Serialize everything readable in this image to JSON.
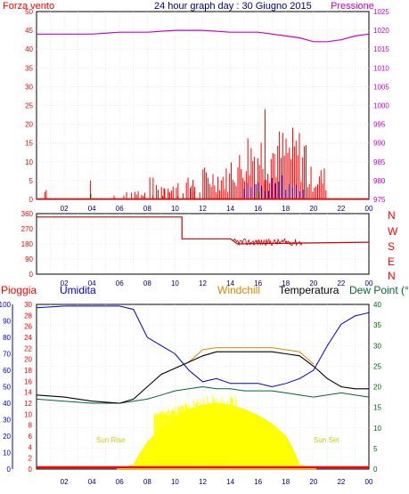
{
  "chart_data": [
    {
      "type": "bar+line",
      "title": "24 hour graph day : 30 Giugno 2015",
      "left_label": "Forza vento",
      "right_label": "Pressione",
      "x_ticks": [
        "02",
        "04",
        "06",
        "08",
        "10",
        "12",
        "14",
        "16",
        "18",
        "20",
        "22",
        "00"
      ],
      "y_left_ticks": [
        "0",
        "5",
        "10",
        "15",
        "20",
        "25",
        "30",
        "35",
        "40",
        "45",
        "50"
      ],
      "y_left_lim": [
        0,
        50
      ],
      "y_right_ticks": [
        "975",
        "980",
        "985",
        "990",
        "995",
        "1000",
        "1005",
        "1010",
        "1015",
        "1020",
        "1025"
      ],
      "y_right_lim": [
        975,
        1025
      ],
      "pressure_series": {
        "x": [
          0,
          2,
          4,
          6,
          8,
          10,
          12,
          14,
          16,
          18,
          19,
          20,
          21,
          22,
          23,
          24
        ],
        "values": [
          1019,
          1019,
          1019,
          1019.5,
          1019.5,
          1020,
          1020,
          1019.5,
          1019.5,
          1018.5,
          1018,
          1017,
          1017,
          1017.5,
          1018.5,
          1019
        ]
      },
      "wind_peak": 24,
      "colors": {
        "wind": "#ff0000",
        "pressure": "#cc00cc",
        "gust": "#006600",
        "avg": "#0000cc"
      }
    },
    {
      "type": "line",
      "left_label": "",
      "y_ticks": [
        "360",
        "270",
        "180",
        "90",
        "0"
      ],
      "y_lim": [
        0,
        360
      ],
      "direction_labels": [
        "N",
        "W",
        "S",
        "E",
        "N"
      ],
      "series": {
        "x": [
          0,
          10.5,
          10.5,
          14,
          14.5,
          24
        ],
        "values": [
          340,
          340,
          210,
          210,
          180,
          190
        ]
      },
      "colors": {
        "line": "#cc0000",
        "letters": "#ff0000"
      }
    },
    {
      "type": "line+area",
      "labels": {
        "rain": "Pioggia",
        "humidity": "Umidita",
        "windchill": "Windchill",
        "temperature": "Temperatura",
        "dewpoint": "Dew Point (°C"
      },
      "y_hum_ticks": [
        "0",
        "10",
        "20",
        "30",
        "40",
        "50",
        "60",
        "70",
        "80",
        "90",
        "100"
      ],
      "y_rain_ticks": [
        "0",
        "2",
        "4",
        "6",
        "8",
        "10",
        "12",
        "14",
        "16",
        "18",
        "20",
        "22",
        "24",
        "26",
        "28",
        "30"
      ],
      "y_temp_ticks": [
        "0",
        "5",
        "10",
        "15",
        "20",
        "25",
        "30",
        "35",
        "40"
      ],
      "y_temp_lim": [
        0,
        40
      ],
      "y_hum_lim": [
        0,
        100
      ],
      "sunrise_label": "Sun Rise",
      "sunset_label": "Sun Set",
      "humidity": {
        "x": [
          0,
          2,
          4,
          6,
          7,
          8,
          9,
          10,
          11,
          12,
          13,
          14,
          15,
          16,
          17,
          18,
          19,
          20,
          21,
          22,
          23,
          24
        ],
        "values": [
          98,
          99,
          99,
          99,
          97,
          80,
          75,
          70,
          60,
          53,
          55,
          52,
          52,
          52,
          50,
          52,
          55,
          60,
          75,
          88,
          93,
          95
        ]
      },
      "temperature": {
        "x": [
          0,
          2,
          4,
          6,
          7,
          8,
          9,
          10,
          11,
          12,
          13,
          14,
          15,
          16,
          17,
          18,
          19,
          20,
          21,
          22,
          23,
          24
        ],
        "values": [
          18,
          17.5,
          16.5,
          16,
          17,
          20,
          23,
          24.5,
          26,
          27.5,
          28.5,
          28.5,
          28.5,
          28.5,
          28.5,
          28,
          27.5,
          25,
          22,
          20,
          19.5,
          19.5
        ]
      },
      "windchill": {
        "x": [
          10,
          11,
          12,
          13,
          14,
          15,
          16,
          17,
          18,
          19,
          20
        ],
        "values": [
          24.5,
          26,
          29,
          29.5,
          29.5,
          29.5,
          29.5,
          29.5,
          29,
          28.5,
          25.5
        ]
      },
      "dewpoint": {
        "x": [
          0,
          2,
          4,
          6,
          7,
          8,
          9,
          10,
          11,
          12,
          13,
          14,
          15,
          16,
          17,
          18,
          19,
          20,
          21,
          22,
          23,
          24
        ],
        "values": [
          17,
          16.5,
          16,
          16,
          16.5,
          17,
          18,
          19,
          19.5,
          20,
          19.5,
          19.5,
          19,
          19,
          19,
          18.5,
          18,
          17.5,
          18,
          18.5,
          18,
          17.5
        ]
      },
      "solar": {
        "x": [
          5.8,
          7,
          7.5,
          8,
          9,
          10,
          11,
          12,
          13,
          14,
          15,
          16,
          17,
          18,
          18.5,
          19,
          20.2
        ],
        "values": [
          0,
          1,
          4,
          6.5,
          10,
          12.5,
          14.5,
          15.5,
          16,
          15.5,
          14.5,
          13,
          11,
          8,
          5,
          1,
          0
        ]
      },
      "colors": {
        "humidity": "#0000cc",
        "temperature": "#000000",
        "windchill": "#dd8800",
        "dewpoint": "#006633",
        "solar": "#ffff00",
        "rain": "#ff0000",
        "temp_axis": "#006600"
      }
    }
  ]
}
